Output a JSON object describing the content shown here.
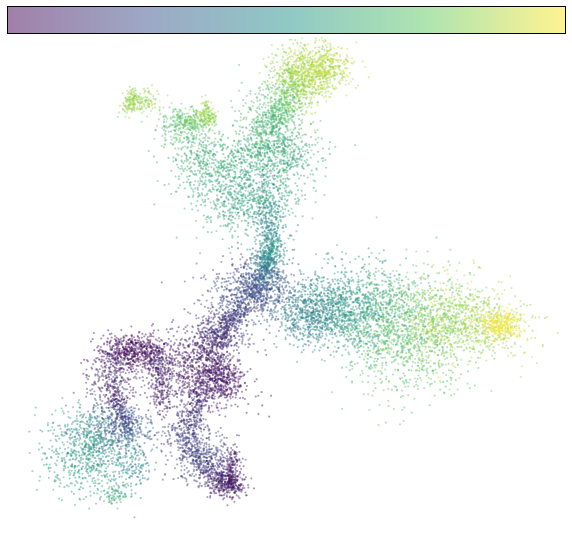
{
  "chart_data": {
    "type": "scatter",
    "title": "",
    "xlabel": "",
    "ylabel": "",
    "grid": false,
    "axes_visible": false,
    "point_alpha": 0.45,
    "colorbar": {
      "orientation": "horizontal",
      "placement": "top",
      "colormap": "viridis",
      "tick_labels": [],
      "stops": [
        "#440154",
        "#3b528b",
        "#21918c",
        "#5ec962",
        "#fde725"
      ]
    },
    "x_range": [
      0,
      1
    ],
    "y_range": [
      0,
      1
    ],
    "clusters": [
      {
        "name": "",
        "center": [
          0.465,
          0.175
        ],
        "spread": [
          0.03,
          0.04
        ],
        "n": 500,
        "value": 0.68
      },
      {
        "name": "",
        "center": [
          0.53,
          0.08
        ],
        "spread": [
          0.03,
          0.035
        ],
        "n": 700,
        "value": 0.86
      },
      {
        "name": "",
        "center": [
          0.575,
          0.06
        ],
        "spread": [
          0.025,
          0.02
        ],
        "n": 400,
        "value": 0.89
      },
      {
        "name": "",
        "center": [
          0.48,
          0.235
        ],
        "spread": [
          0.04,
          0.03
        ],
        "n": 500,
        "value": 0.6
      },
      {
        "name": "",
        "center": [
          0.215,
          0.13
        ],
        "spread": [
          0.02,
          0.012
        ],
        "n": 150,
        "value": 0.84
      },
      {
        "name": "",
        "center": [
          0.3,
          0.18
        ],
        "spread": [
          0.025,
          0.02
        ],
        "n": 250,
        "value": 0.7
      },
      {
        "name": "",
        "center": [
          0.35,
          0.25
        ],
        "spread": [
          0.04,
          0.03
        ],
        "n": 400,
        "value": 0.62
      },
      {
        "name": "",
        "center": [
          0.42,
          0.32
        ],
        "spread": [
          0.05,
          0.04
        ],
        "n": 800,
        "value": 0.58
      },
      {
        "name": "",
        "center": [
          0.465,
          0.41
        ],
        "spread": [
          0.015,
          0.05
        ],
        "n": 400,
        "value": 0.45
      },
      {
        "name": "",
        "center": [
          0.435,
          0.51
        ],
        "spread": [
          0.04,
          0.03
        ],
        "n": 700,
        "value": 0.22
      },
      {
        "name": "",
        "center": [
          0.55,
          0.56
        ],
        "spread": [
          0.04,
          0.03
        ],
        "n": 700,
        "value": 0.42
      },
      {
        "name": "",
        "center": [
          0.63,
          0.55
        ],
        "spread": [
          0.05,
          0.045
        ],
        "n": 900,
        "value": 0.54
      },
      {
        "name": "",
        "center": [
          0.73,
          0.6
        ],
        "spread": [
          0.06,
          0.06
        ],
        "n": 1200,
        "value": 0.72
      },
      {
        "name": "",
        "center": [
          0.84,
          0.58
        ],
        "spread": [
          0.06,
          0.04
        ],
        "n": 900,
        "value": 0.86
      },
      {
        "name": "",
        "center": [
          0.915,
          0.585
        ],
        "spread": [
          0.02,
          0.015
        ],
        "n": 300,
        "value": 0.98
      },
      {
        "name": "",
        "center": [
          0.37,
          0.6
        ],
        "spread": [
          0.03,
          0.03
        ],
        "n": 350,
        "value": 0.15
      },
      {
        "name": "",
        "center": [
          0.2,
          0.64
        ],
        "spread": [
          0.035,
          0.018
        ],
        "n": 600,
        "value": 0.03
      },
      {
        "name": "",
        "center": [
          0.29,
          0.67
        ],
        "spread": [
          0.045,
          0.035
        ],
        "n": 500,
        "value": 0.06
      },
      {
        "name": "",
        "center": [
          0.36,
          0.7
        ],
        "spread": [
          0.035,
          0.03
        ],
        "n": 450,
        "value": 0.05
      },
      {
        "name": "",
        "center": [
          0.16,
          0.7
        ],
        "spread": [
          0.025,
          0.035
        ],
        "n": 300,
        "value": 0.12
      },
      {
        "name": "",
        "center": [
          0.17,
          0.8
        ],
        "spread": [
          0.04,
          0.025
        ],
        "n": 400,
        "value": 0.28
      },
      {
        "name": "",
        "center": [
          0.11,
          0.84
        ],
        "spread": [
          0.04,
          0.04
        ],
        "n": 700,
        "value": 0.55
      },
      {
        "name": "",
        "center": [
          0.31,
          0.82
        ],
        "spread": [
          0.03,
          0.04
        ],
        "n": 250,
        "value": 0.18
      },
      {
        "name": "",
        "center": [
          0.38,
          0.91
        ],
        "spread": [
          0.02,
          0.015
        ],
        "n": 250,
        "value": 0.08
      },
      {
        "name": "",
        "center": [
          0.35,
          0.86
        ],
        "spread": [
          0.025,
          0.03
        ],
        "n": 200,
        "value": 0.2
      },
      {
        "name": "",
        "center": [
          0.2,
          0.87
        ],
        "spread": [
          0.02,
          0.03
        ],
        "n": 150,
        "value": 0.45
      },
      {
        "name": "",
        "center": [
          0.165,
          0.93
        ],
        "spread": [
          0.015,
          0.01
        ],
        "n": 80,
        "value": 0.6
      }
    ],
    "trajectories": [
      {
        "value_from": 0.22,
        "value_to": 0.58,
        "from": [
          0.44,
          0.52
        ],
        "to": [
          0.47,
          0.42
        ],
        "n": 400,
        "spread": 0.012
      },
      {
        "value_from": 0.22,
        "value_to": 0.1,
        "from": [
          0.42,
          0.54
        ],
        "to": [
          0.36,
          0.62
        ],
        "n": 300,
        "spread": 0.012
      },
      {
        "value_from": 0.1,
        "value_to": 0.05,
        "from": [
          0.33,
          0.62
        ],
        "to": [
          0.39,
          0.72
        ],
        "n": 300,
        "spread": 0.015
      },
      {
        "value_from": 0.1,
        "value_to": 0.2,
        "from": [
          0.33,
          0.72
        ],
        "to": [
          0.3,
          0.82
        ],
        "n": 250,
        "spread": 0.012
      },
      {
        "value_from": 0.2,
        "value_to": 0.08,
        "from": [
          0.31,
          0.84
        ],
        "to": [
          0.39,
          0.92
        ],
        "n": 250,
        "spread": 0.012
      },
      {
        "value_from": 0.08,
        "value_to": 0.05,
        "from": [
          0.395,
          0.84
        ],
        "to": [
          0.39,
          0.925
        ],
        "n": 180,
        "spread": 0.008
      },
      {
        "value_from": 0.05,
        "value_to": 0.25,
        "from": [
          0.16,
          0.72
        ],
        "to": [
          0.19,
          0.8
        ],
        "n": 220,
        "spread": 0.01
      },
      {
        "value_from": 0.15,
        "value_to": 0.05,
        "from": [
          0.25,
          0.65
        ],
        "to": [
          0.26,
          0.76
        ],
        "n": 200,
        "spread": 0.012
      },
      {
        "value_from": 0.6,
        "value_to": 0.85,
        "from": [
          0.47,
          0.18
        ],
        "to": [
          0.52,
          0.08
        ],
        "n": 300,
        "spread": 0.015
      },
      {
        "value_from": 0.75,
        "value_to": 0.88,
        "from": [
          0.3,
          0.17
        ],
        "to": [
          0.35,
          0.16
        ],
        "n": 150,
        "spread": 0.01
      },
      {
        "value_from": 0.84,
        "value_to": 0.84,
        "from": [
          0.19,
          0.15
        ],
        "to": [
          0.2,
          0.11
        ],
        "n": 80,
        "spread": 0.005
      },
      {
        "value_from": 0.84,
        "value_to": 0.84,
        "from": [
          0.34,
          0.13
        ],
        "to": [
          0.35,
          0.17
        ],
        "n": 80,
        "spread": 0.005
      }
    ]
  }
}
